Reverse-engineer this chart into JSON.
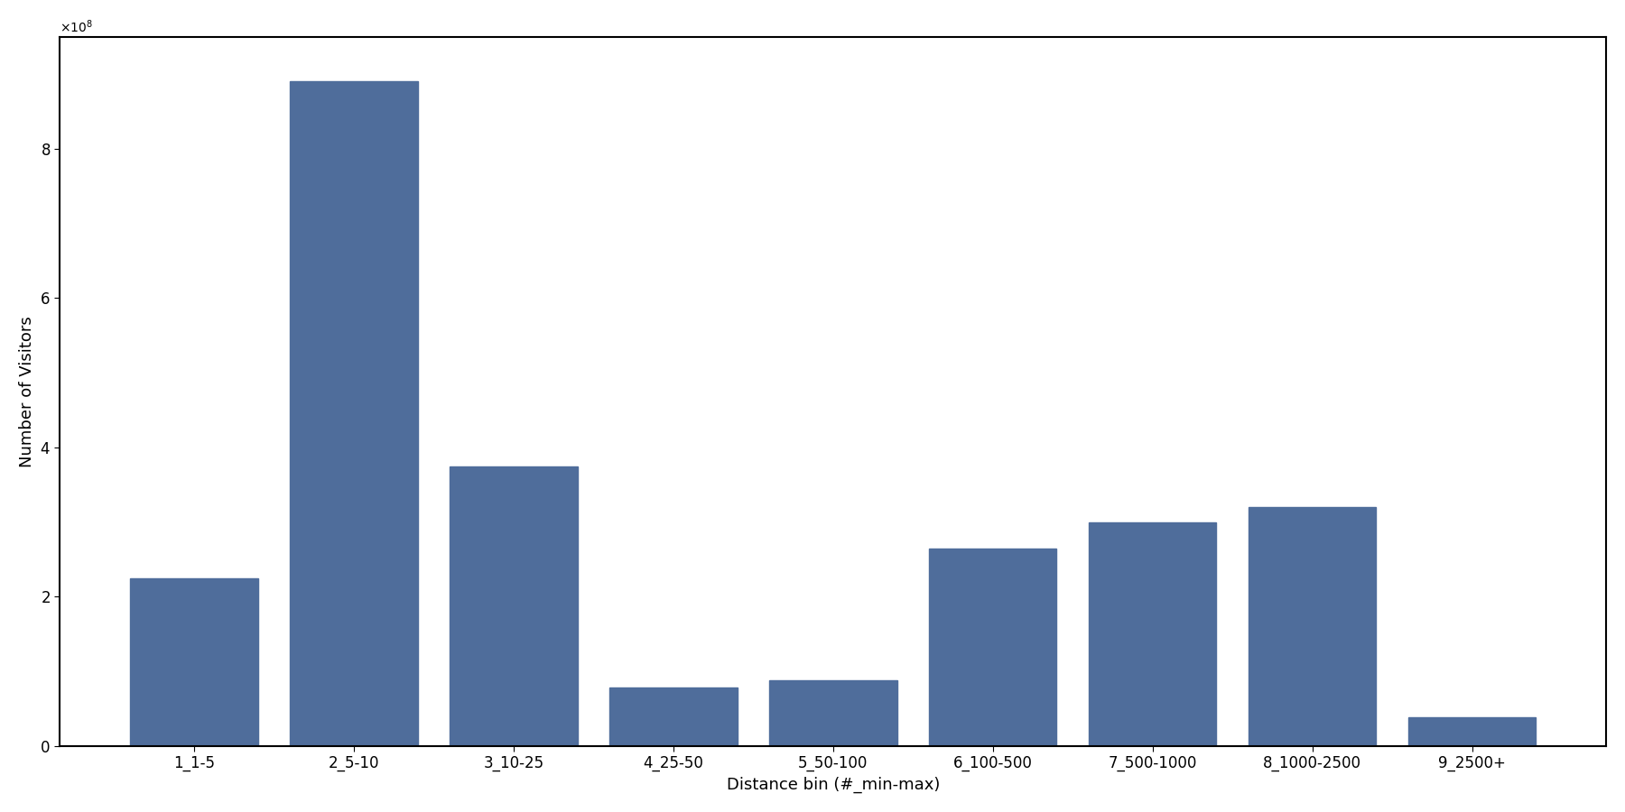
{
  "categories": [
    "1_1-5",
    "2_5-10",
    "3_10-25",
    "4_25-50",
    "5_50-100",
    "6_100-500",
    "7_500-1000",
    "8_1000-2500",
    "9_2500+"
  ],
  "values": [
    225000000.0,
    890000000.0,
    375000000.0,
    78000000.0,
    88000000.0,
    265000000.0,
    300000000.0,
    320000000.0,
    38000000.0
  ],
  "bar_color": "#4f6d9b",
  "xlabel": "Distance bin (#_min-max)",
  "ylabel": "Number of Visitors",
  "ylim": [
    0,
    950000000.0
  ],
  "figsize": [
    18.0,
    9.0
  ],
  "dpi": 100
}
